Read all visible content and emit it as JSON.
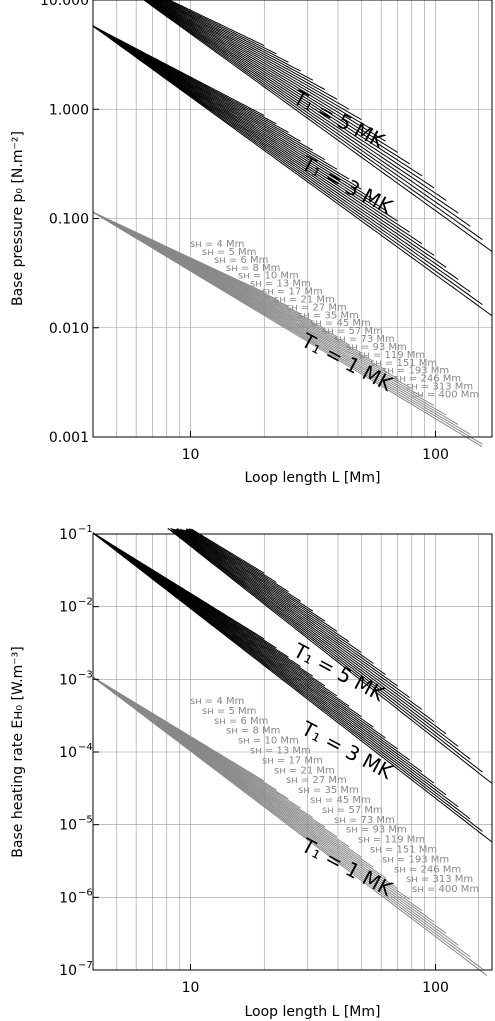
{
  "chart_data": [
    {
      "type": "line",
      "xlabel": "Loop length L [Mm]",
      "ylabel": "Base pressure p₀ [N.m⁻²]",
      "xscale": "log",
      "yscale": "log",
      "xlim": [
        4,
        170
      ],
      "ylim": [
        0.001,
        10
      ],
      "grid": true,
      "x_ticks": [
        {
          "value": 10,
          "label": "10"
        },
        {
          "value": 100,
          "label": "100"
        }
      ],
      "y_ticks": [
        {
          "value": 0.001,
          "label": "0.001"
        },
        {
          "value": 0.01,
          "label": "0.010"
        },
        {
          "value": 0.1,
          "label": "0.100"
        },
        {
          "value": 1,
          "label": "1.000"
        },
        {
          "value": 10,
          "label": "10.000"
        }
      ],
      "temperature_labels": [
        "T₁ = 5 MK",
        "T₁ = 3 MK",
        "T₁ = 1 MK"
      ],
      "scale_height_labels": [
        "sʜ = 4 Mm",
        "sʜ = 5 Mm",
        "sʜ = 6 Mm",
        "sʜ = 8 Mm",
        "sʜ = 10 Mm",
        "sʜ = 13 Mm",
        "sʜ = 17 Mm",
        "sʜ = 21 Mm",
        "sʜ = 27 Mm",
        "sʜ = 35 Mm",
        "sʜ = 45 Mm",
        "sʜ = 57 Mm",
        "sʜ = 73 Mm",
        "sʜ = 93 Mm",
        "sʜ = 119 Mm",
        "sʜ = 151 Mm",
        "sʜ = 193 Mm",
        "sʜ = 246 Mm",
        "sʜ = 313 Mm",
        "sʜ = 400 Mm"
      ],
      "scale_heights_Mm": [
        4,
        5,
        6,
        8,
        10,
        13,
        17,
        21,
        27,
        35,
        45,
        57,
        73,
        93,
        119,
        151,
        193,
        246,
        313,
        400
      ],
      "series": [
        {
          "temperature_MK": 5,
          "color": "#000000",
          "y_at_L10": 6.3,
          "slope": -1.35,
          "droop_end": 1.6
        },
        {
          "temperature_MK": 3,
          "color": "#000000",
          "y_at_L10": 1.6,
          "slope": -1.4,
          "droop_end": 1.35
        },
        {
          "temperature_MK": 1,
          "color": "#888888",
          "y_at_L10": 0.038,
          "slope": -1.2,
          "droop_end": 0.9
        }
      ]
    },
    {
      "type": "line",
      "xlabel": "Loop length L [Mm]",
      "ylabel": "Base heating rate Eʜ₀ [W.m⁻³]",
      "xscale": "log",
      "yscale": "log",
      "xlim": [
        4,
        170
      ],
      "ylim": [
        1e-07,
        0.1
      ],
      "grid": true,
      "x_ticks": [
        {
          "value": 10,
          "label": "10"
        },
        {
          "value": 100,
          "label": "100"
        }
      ],
      "y_ticks": [
        {
          "value": 1e-07,
          "mant": "10",
          "exp": "−7"
        },
        {
          "value": 1e-06,
          "mant": "10",
          "exp": "−6"
        },
        {
          "value": 1e-05,
          "mant": "10",
          "exp": "−5"
        },
        {
          "value": 0.0001,
          "mant": "10",
          "exp": "−4"
        },
        {
          "value": 0.001,
          "mant": "10",
          "exp": "−3"
        },
        {
          "value": 0.01,
          "mant": "10",
          "exp": "−2"
        },
        {
          "value": 0.1,
          "mant": "10",
          "exp": "−1"
        }
      ],
      "temperature_labels": [
        "T₁ = 5 MK",
        "T₁ = 3 MK",
        "T₁ = 1 MK"
      ],
      "scale_height_labels": [
        "sʜ = 4 Mm",
        "sʜ = 5 Mm",
        "sʜ = 6 Mm",
        "sʜ = 8 Mm",
        "sʜ = 10 Mm",
        "sʜ = 13 Mm",
        "sʜ = 17 Mm",
        "sʜ = 21 Mm",
        "sʜ = 27 Mm",
        "sʜ = 35 Mm",
        "sʜ = 45 Mm",
        "sʜ = 57 Mm",
        "sʜ = 73 Mm",
        "sʜ = 93 Mm",
        "sʜ = 119 Mm",
        "sʜ = 151 Mm",
        "sʜ = 193 Mm",
        "sʜ = 246 Mm",
        "sʜ = 313 Mm",
        "sʜ = 400 Mm"
      ],
      "scale_heights_Mm": [
        4,
        5,
        6,
        8,
        10,
        13,
        17,
        21,
        27,
        35,
        45,
        57,
        73,
        93,
        119,
        151,
        193,
        246,
        313,
        400
      ],
      "series": [
        {
          "temperature_MK": 5,
          "color": "#000000",
          "y_at_L10": 0.09,
          "slope": -2.35,
          "droop_end": 1.8
        },
        {
          "temperature_MK": 3,
          "color": "#000000",
          "y_at_L10": 0.012,
          "slope": -2.35,
          "droop_end": 1.55
        },
        {
          "temperature_MK": 1,
          "color": "#888888",
          "y_at_L10": 0.00013,
          "slope": -2.3,
          "droop_end": 1.5
        }
      ]
    }
  ]
}
